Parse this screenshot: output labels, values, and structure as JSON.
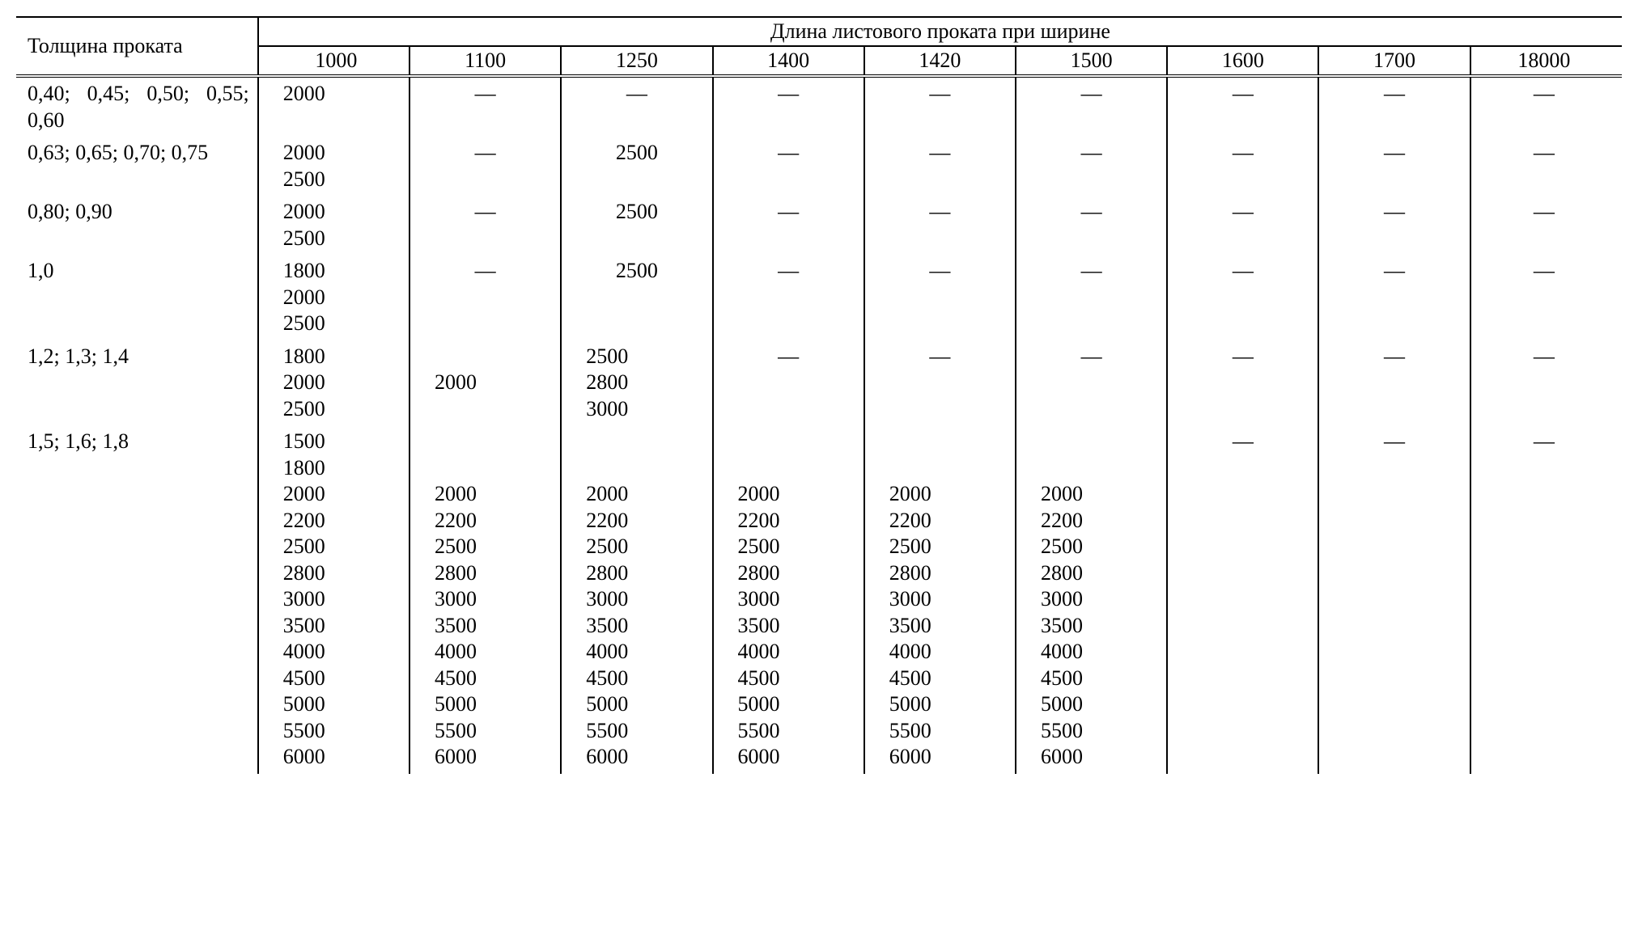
{
  "type": "table",
  "background_color": "#ffffff",
  "text_color": "#000000",
  "border_color": "#000000",
  "font_family": "Times New Roman",
  "font_size_pt": 20,
  "header": {
    "row_label": "Толщина проката",
    "span_label": "Длина листового проката при ширине",
    "widths": [
      "1000",
      "1100",
      "1250",
      "1400",
      "1420",
      "1500",
      "1600",
      "1700",
      "18000"
    ]
  },
  "rows": [
    {
      "thickness": "0,40; 0,45; 0,50; 0,55; 0,60",
      "c0": "2000",
      "c1": "—",
      "c2": "—",
      "c3": "—",
      "c4": "—",
      "c5": "—",
      "c6": "—",
      "c7": "—",
      "c8": "—"
    },
    {
      "thickness": "0,63; 0,65; 0,70; 0,75",
      "c0": "2000\n2500",
      "c1": "—",
      "c2": "2500",
      "c3": "—",
      "c4": "—",
      "c5": "—",
      "c6": "—",
      "c7": "—",
      "c8": "—"
    },
    {
      "thickness": "0,80; 0,90",
      "c0": "2000\n2500",
      "c1": "—",
      "c2": "2500",
      "c3": "—",
      "c4": "—",
      "c5": "—",
      "c6": "—",
      "c7": "—",
      "c8": "—"
    },
    {
      "thickness": "1,0",
      "c0": "1800\n2000\n2500",
      "c1": "—",
      "c2": "2500",
      "c3": "—",
      "c4": "—",
      "c5": "—",
      "c6": "—",
      "c7": "—",
      "c8": "—"
    },
    {
      "thickness": "1,2; 1,3; 1,4",
      "c0": "1800\n2000\n2500",
      "c1": "\n2000",
      "c2": "2500\n2800\n3000",
      "c3": "—",
      "c4": "—",
      "c5": "—",
      "c6": "—",
      "c7": "—",
      "c8": "—"
    },
    {
      "thickness": "1,5; 1,6; 1,8",
      "c0": "1500\n1800\n2000\n2200\n2500\n2800\n3000\n3500\n4000\n4500\n5000\n5500\n6000",
      "c1": "\n\n2000\n2200\n2500\n2800\n3000\n3500\n4000\n4500\n5000\n5500\n6000",
      "c2": "\n\n2000\n2200\n2500\n2800\n3000\n3500\n4000\n4500\n5000\n5500\n6000",
      "c3": "\n\n2000\n2200\n2500\n2800\n3000\n3500\n4000\n4500\n5000\n5500\n6000",
      "c4": "\n\n2000\n2200\n2500\n2800\n3000\n3500\n4000\n4500\n5000\n5500\n6000",
      "c5": "\n\n2000\n2200\n2500\n2800\n3000\n3500\n4000\n4500\n5000\n5500\n6000",
      "c6": "—",
      "c7": "—",
      "c8": "—"
    }
  ]
}
